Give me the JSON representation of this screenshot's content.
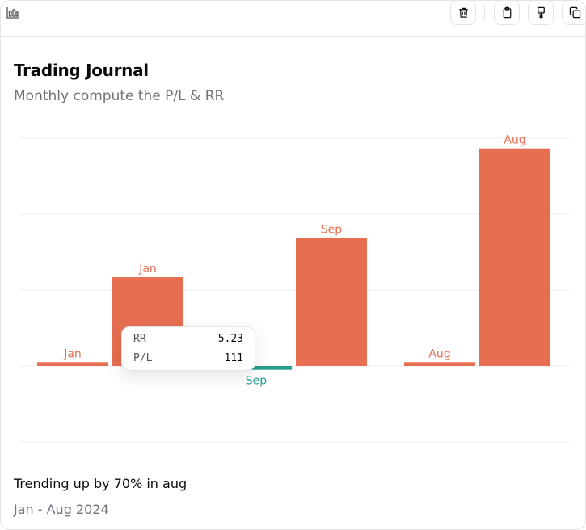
{
  "header": {
    "title": "Trading Journal",
    "subtitle": "Monthly compute the P/L & RR"
  },
  "toolbar": {
    "left_icon": "bar-chart-icon",
    "buttons": [
      {
        "icon": "trash-icon"
      },
      {
        "icon": "clipboard-icon"
      },
      {
        "icon": "paintbrush-icon"
      },
      {
        "icon": "copy-icon"
      }
    ]
  },
  "chart_data": {
    "type": "bar",
    "grid": true,
    "colors": {
      "positive": "#e76e50",
      "negative": "#2a9d8f"
    },
    "groups": [
      {
        "bars": [
          {
            "label": "Jan",
            "value": 1
          },
          {
            "label": "Jan",
            "value": 23.4
          }
        ]
      },
      {
        "bars": [
          {
            "label": "Sep",
            "value": -1
          },
          {
            "label": "Sep",
            "value": 33.7
          }
        ]
      },
      {
        "bars": [
          {
            "label": "Aug",
            "value": 1
          },
          {
            "label": "Aug",
            "value": 57.3
          }
        ]
      }
    ],
    "ylim": [
      -20,
      60
    ]
  },
  "tooltip": {
    "rows": [
      {
        "key": "RR",
        "value": "5.23"
      },
      {
        "key": "P/L",
        "value": "111"
      }
    ]
  },
  "footer": {
    "trend": "Trending up by 70% in aug",
    "range": "Jan - Aug 2024"
  }
}
